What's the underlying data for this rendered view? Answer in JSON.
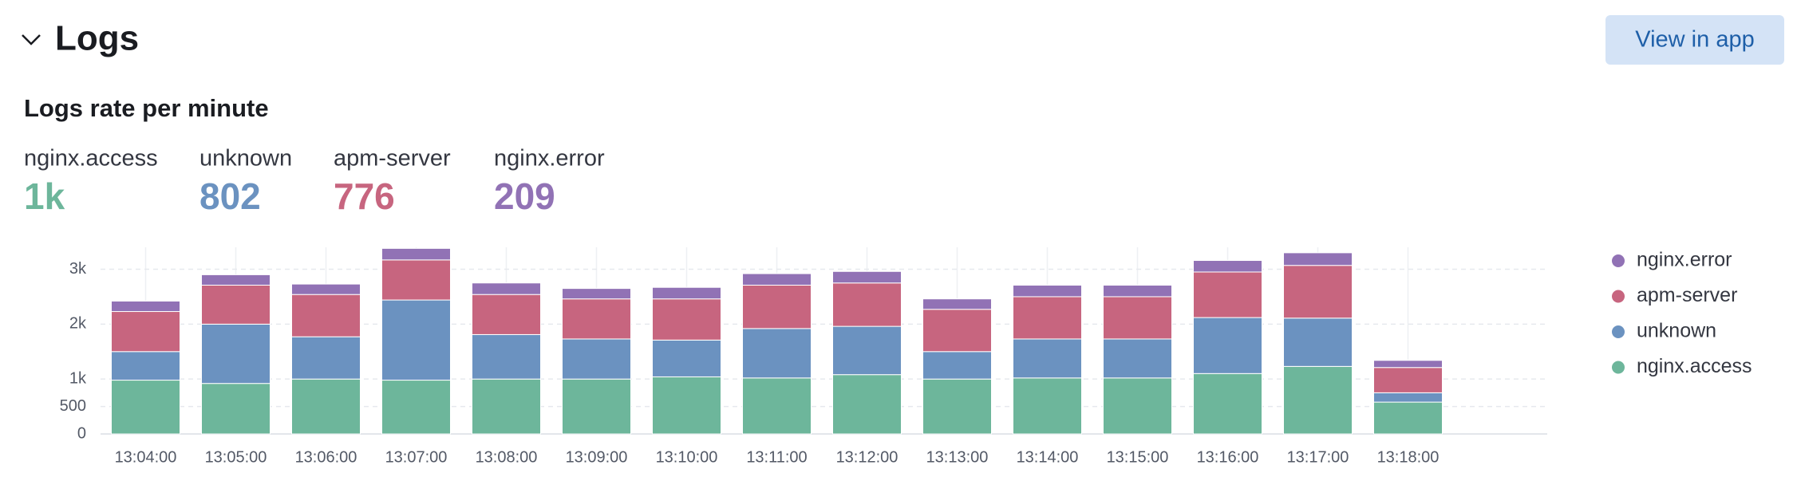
{
  "header": {
    "title": "Logs",
    "button": "View in app"
  },
  "stats": [
    {
      "name": "nginx.access",
      "value": 1000,
      "value_label": "1k",
      "color": "#6db69b"
    },
    {
      "name": "unknown",
      "value": 802,
      "color": "#6b92c0"
    },
    {
      "name": "apm-server",
      "value": 776,
      "color": "#c7657f"
    },
    {
      "name": "nginx.error",
      "value": 209,
      "color": "#9172b5"
    }
  ],
  "chart_data": {
    "type": "stacked_bar",
    "title": "Logs rate per minute",
    "categories": [
      "13:04:00",
      "13:05:00",
      "13:06:00",
      "13:07:00",
      "13:08:00",
      "13:09:00",
      "13:10:00",
      "13:11:00",
      "13:12:00",
      "13:13:00",
      "13:14:00",
      "13:15:00",
      "13:16:00",
      "13:17:00",
      "13:18:00"
    ],
    "series": [
      {
        "name": "nginx.access",
        "color": "#6db69b",
        "values": [
          980,
          920,
          1000,
          980,
          1000,
          1000,
          1040,
          1020,
          1080,
          1000,
          1020,
          1020,
          1100,
          1230,
          580
        ]
      },
      {
        "name": "unknown",
        "color": "#6b92c0",
        "values": [
          520,
          1080,
          770,
          1460,
          810,
          730,
          670,
          900,
          880,
          500,
          710,
          710,
          1020,
          880,
          170
        ]
      },
      {
        "name": "apm-server",
        "color": "#c7657f",
        "values": [
          730,
          710,
          770,
          730,
          730,
          730,
          750,
          790,
          790,
          770,
          770,
          770,
          830,
          960,
          460
        ]
      },
      {
        "name": "nginx.error",
        "color": "#9172b5",
        "values": [
          190,
          190,
          190,
          210,
          210,
          190,
          210,
          210,
          210,
          190,
          210,
          210,
          210,
          230,
          130
        ]
      }
    ],
    "ylim": [
      0,
      3400
    ],
    "yticks": [
      0,
      500,
      {
        "value": 1000,
        "label": "1k"
      },
      {
        "value": 2000,
        "label": "2k"
      },
      {
        "value": 3000,
        "label": "3k"
      }
    ],
    "grid": true,
    "legend": "right"
  }
}
